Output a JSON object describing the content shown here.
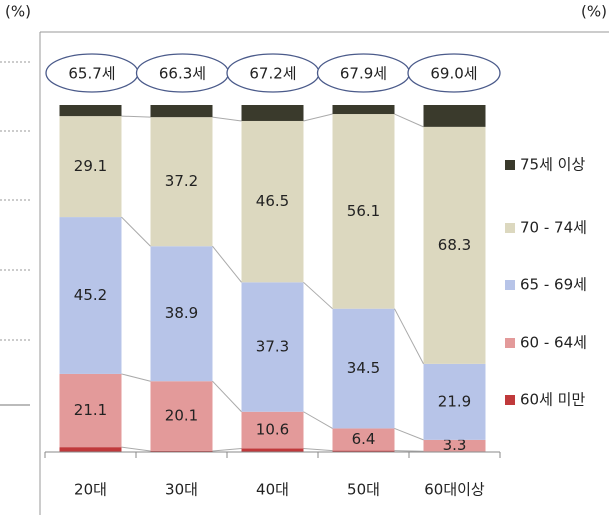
{
  "chart_data": {
    "type": "stacked_bar",
    "left_unit": "(%)",
    "right_unit": "(%)",
    "categories": [
      "20대",
      "30대",
      "40대",
      "50대",
      "60대이상"
    ],
    "average_ages": [
      "65.7세",
      "66.3세",
      "67.2세",
      "67.9세",
      "69.0세"
    ],
    "ylim": [
      0,
      100
    ],
    "series": [
      {
        "name": "60세 미만",
        "color": "#c0393b",
        "data_labels": false,
        "values": [
          1.4,
          0.3,
          1.0,
          0.4,
          0.2
        ]
      },
      {
        "name": "60 - 64세",
        "color": "#e39a9a",
        "data_labels": true,
        "values": [
          21.1,
          20.1,
          10.6,
          6.4,
          3.3
        ]
      },
      {
        "name": "65 - 69세",
        "color": "#b7c4e8",
        "data_labels": true,
        "values": [
          45.2,
          38.9,
          37.3,
          34.5,
          21.9
        ]
      },
      {
        "name": "70 - 74세",
        "color": "#dcd8bf",
        "data_labels": true,
        "values": [
          29.1,
          37.2,
          46.5,
          56.1,
          68.3
        ]
      },
      {
        "name": "75세 이상",
        "color": "#3a3a2c",
        "data_labels": false,
        "values": [
          3.2,
          3.5,
          4.6,
          2.6,
          6.3
        ]
      }
    ]
  }
}
